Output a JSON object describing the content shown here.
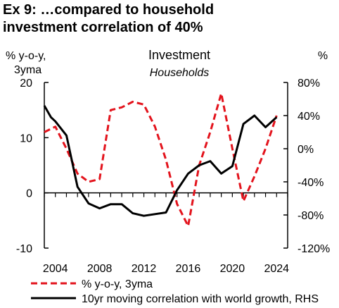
{
  "title": {
    "line1": "Ex 9: …compared to household",
    "line2": "investment correlation of 40%"
  },
  "chart_data": {
    "type": "line",
    "title": "Investment",
    "subtitle": "Households",
    "y_left_label": [
      "% y-o-y,",
      "3yma"
    ],
    "y_right_label": "%",
    "x_range": [
      2003,
      2025
    ],
    "x_ticks": [
      2004,
      2008,
      2012,
      2016,
      2020,
      2024
    ],
    "y_left_range": [
      -10,
      20
    ],
    "y_left_ticks": [
      20,
      10,
      0,
      -10
    ],
    "y_right_range": [
      -120,
      80
    ],
    "y_right_ticks": [
      "80%",
      "40%",
      "0%",
      "-40%",
      "-80%",
      "-120%"
    ],
    "y_right_tick_values": [
      80,
      40,
      0,
      -40,
      -80,
      -120
    ],
    "grid": false,
    "legend_position": "bottom",
    "series": [
      {
        "name": "% y-o-y, 3yma",
        "axis": "left",
        "color": "#e3131c",
        "style": "dashed",
        "x": [
          2003,
          2004,
          2005,
          2006,
          2007,
          2008,
          2009,
          2010,
          2011,
          2012,
          2013,
          2014,
          2015,
          2016,
          2017,
          2018,
          2019,
          2020,
          2021,
          2022,
          2023,
          2024
        ],
        "y": [
          11,
          12,
          8,
          3.5,
          2,
          2.5,
          15,
          15.5,
          16.5,
          16,
          12,
          6,
          -2,
          -6,
          5,
          11,
          18,
          8,
          -1.5,
          3,
          8,
          14
        ]
      },
      {
        "name": "10yr moving correlation with world growth, RHS",
        "axis": "right",
        "color": "#000000",
        "style": "solid",
        "x": [
          2003,
          2003.6,
          2004,
          2005,
          2006,
          2007,
          2008,
          2009,
          2010,
          2011,
          2012,
          2013,
          2014,
          2015,
          2016,
          2017,
          2018,
          2019,
          2020,
          2021,
          2022,
          2023,
          2024
        ],
        "y": [
          52,
          38,
          33,
          16,
          -46,
          -66,
          -72,
          -67,
          -67,
          -78,
          -81,
          -79,
          -77,
          -50,
          -30,
          -20,
          -15,
          -30,
          -21,
          30,
          40,
          26,
          38
        ]
      }
    ]
  }
}
